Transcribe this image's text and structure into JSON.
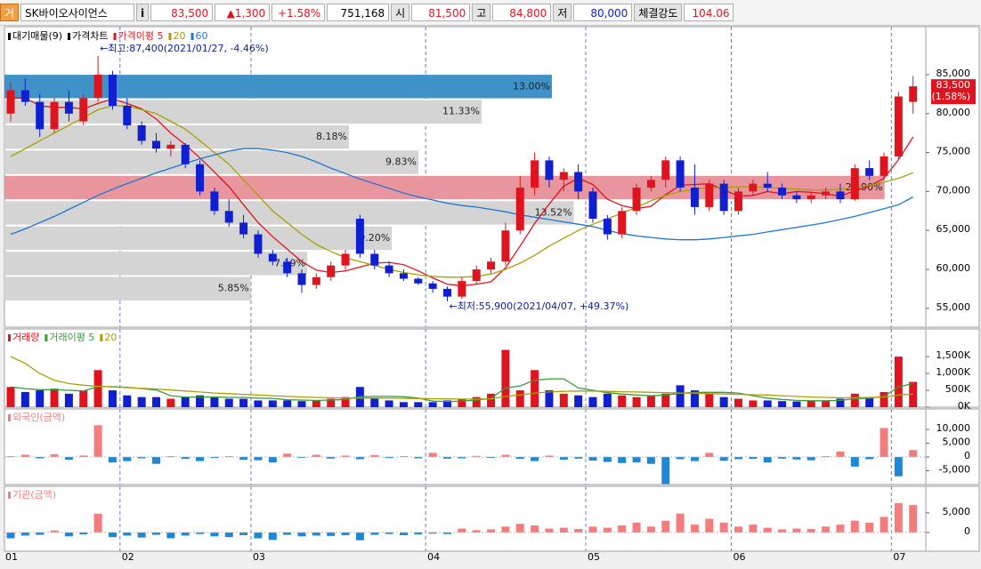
{
  "header": {
    "icon": "거",
    "name": "SK바이오사이언스",
    "info": "i",
    "price": "83,500",
    "change": "▲1,300",
    "rate": "+1.58%",
    "volume": "751,168",
    "open_label": "시",
    "open": "81,500",
    "high_label": "고",
    "high": "84,800",
    "low_label": "저",
    "low": "80,000",
    "strength_label": "체결강도",
    "strength": "104.06"
  },
  "chart_data": [
    {
      "type": "candlestick",
      "categories": [
        "01",
        null,
        null,
        null,
        null,
        null,
        null,
        null,
        "02",
        null,
        null,
        null,
        null,
        null,
        null,
        null,
        null,
        "03",
        null,
        null,
        null,
        null,
        null,
        null,
        null,
        null,
        null,
        null,
        null,
        "04",
        null,
        null,
        null,
        null,
        null,
        null,
        null,
        null,
        null,
        null,
        "05",
        null,
        null,
        null,
        null,
        null,
        null,
        null,
        null,
        null,
        "06",
        null,
        null,
        null,
        null,
        null,
        null,
        null,
        null,
        null,
        null,
        "07",
        null
      ],
      "candles": {
        "name": "가격차트",
        "up_color": "#e0141e",
        "down_color": "#1020d0",
        "open": [
          80000,
          83000,
          81500,
          78000,
          81500,
          79000,
          82000,
          85000,
          81000,
          78500,
          76500,
          75500,
          76000,
          73500,
          70000,
          67500,
          66000,
          64500,
          62000,
          61000,
          59500,
          58000,
          59000,
          60500,
          66500,
          62000,
          60500,
          59500,
          58800,
          58200,
          57500,
          56500,
          58500,
          60000,
          61000,
          65000,
          70500,
          74000,
          71500,
          72500,
          70000,
          66500,
          64500,
          67500,
          70500,
          71500,
          74000,
          70500,
          68000,
          71000,
          67500,
          70000,
          71000,
          70500,
          69500,
          69000,
          69500,
          70000,
          69000,
          73000,
          72000,
          74500,
          81500
        ],
        "high": [
          84000,
          84500,
          82500,
          82000,
          83000,
          82500,
          87400,
          85500,
          82000,
          79000,
          77500,
          76500,
          76200,
          74000,
          70500,
          69000,
          67000,
          65000,
          62500,
          61500,
          60000,
          59500,
          61000,
          62500,
          67000,
          62500,
          61000,
          60000,
          59000,
          58500,
          57800,
          59000,
          60500,
          61500,
          66000,
          72000,
          75000,
          74500,
          73000,
          73500,
          70500,
          67000,
          68000,
          71000,
          72000,
          74500,
          74500,
          73500,
          71500,
          71500,
          70500,
          71500,
          72500,
          71000,
          70000,
          70000,
          70500,
          71000,
          73500,
          74000,
          75000,
          82800,
          84800
        ],
        "low": [
          79000,
          81000,
          77000,
          77500,
          79000,
          78500,
          81500,
          80500,
          78000,
          76000,
          75000,
          74500,
          73000,
          69500,
          67000,
          65500,
          64000,
          61500,
          60500,
          59000,
          57000,
          57500,
          58500,
          60000,
          61500,
          60000,
          59000,
          58500,
          58000,
          57000,
          55900,
          56200,
          58000,
          59500,
          60500,
          64500,
          69500,
          70500,
          70000,
          69000,
          66000,
          63800,
          64000,
          67000,
          70000,
          70500,
          70000,
          67000,
          67500,
          67000,
          67000,
          69500,
          70000,
          69000,
          68500,
          68500,
          69000,
          68500,
          68800,
          71500,
          71500,
          74000,
          80000
        ],
        "close": [
          83000,
          81500,
          78000,
          81500,
          80000,
          82000,
          85000,
          81000,
          78500,
          76500,
          75500,
          76000,
          73500,
          70000,
          67500,
          66000,
          64500,
          62000,
          61000,
          59500,
          58000,
          59000,
          60500,
          62000,
          62000,
          60500,
          59500,
          58800,
          58200,
          57500,
          56500,
          58500,
          60000,
          61000,
          65000,
          70500,
          74000,
          71500,
          72500,
          70000,
          66500,
          64500,
          67500,
          70500,
          71500,
          74000,
          70500,
          68000,
          71000,
          67500,
          70000,
          71000,
          70500,
          69500,
          69000,
          69500,
          70000,
          69000,
          73000,
          72000,
          74500,
          82200,
          83500
        ]
      },
      "lines": [
        {
          "name": "가격이평 5",
          "color": "#e0141e",
          "values": [
            82000,
            82000,
            81000,
            80800,
            80800,
            80600,
            81300,
            81900,
            81300,
            80600,
            79300,
            77500,
            76000,
            74300,
            72500,
            70600,
            68300,
            66000,
            64200,
            62600,
            61000,
            59900,
            59600,
            59800,
            60300,
            60800,
            60900,
            60600,
            59800,
            58900,
            58100,
            57900,
            58100,
            58400,
            60200,
            63000,
            65900,
            68400,
            70700,
            71700,
            70900,
            69000,
            68200,
            67800,
            68100,
            69600,
            70800,
            70900,
            71000,
            70200,
            69400,
            69500,
            70000,
            69700,
            70000,
            69900,
            69700,
            69400,
            70100,
            70700,
            71700,
            74100,
            77000
          ]
        },
        {
          "name": "20",
          "color": "#a8a000",
          "values": [
            74500,
            75500,
            76500,
            77500,
            78500,
            79500,
            80500,
            81000,
            81000,
            80500,
            80000,
            79000,
            78000,
            76500,
            75000,
            73500,
            71500,
            69500,
            67500,
            66000,
            64500,
            63200,
            62300,
            61500,
            61000,
            60500,
            60000,
            59600,
            59300,
            59100,
            59000,
            59000,
            59100,
            59400,
            60000,
            60800,
            61800,
            63000,
            64000,
            65000,
            65800,
            66500,
            67200,
            68000,
            68800,
            69500,
            70000,
            70300,
            70500,
            70500,
            70600,
            70600,
            70500,
            70400,
            70300,
            70200,
            70200,
            70300,
            70500,
            70800,
            71200,
            71700,
            72400
          ]
        },
        {
          "name": "60",
          "color": "#1e78d0",
          "values": [
            64500,
            65200,
            66000,
            66800,
            67700,
            68600,
            69500,
            70300,
            71000,
            71700,
            72400,
            73000,
            73600,
            74200,
            74700,
            75200,
            75500,
            75500,
            75300,
            75000,
            74500,
            73800,
            73000,
            72300,
            71600,
            71000,
            70400,
            69800,
            69300,
            68900,
            68500,
            68200,
            68000,
            67700,
            67400,
            67000,
            66700,
            66400,
            66100,
            65800,
            65500,
            65000,
            64600,
            64300,
            64100,
            63900,
            63800,
            63800,
            63900,
            64100,
            64300,
            64500,
            64800,
            65100,
            65400,
            65700,
            66000,
            66400,
            66800,
            67300,
            67800,
            68300,
            69300
          ]
        }
      ],
      "profile": {
        "name": "대기매물(9)",
        "range": [
          55900,
          85100
        ],
        "xlim": [
          0,
          21.88
        ],
        "values": [
          5.85,
          7.19,
          9.2,
          13.52,
          20.9,
          9.83,
          8.18,
          11.33,
          13.0
        ],
        "value_labels": [
          "5.85%",
          "7.19%",
          "9.20%",
          "13.52%",
          "20.90%",
          "9.83%",
          "8.18%",
          "11.33%",
          "13.00%"
        ],
        "colors": [
          "#d4d4d4",
          "#d4d4d4",
          "#d4d4d4",
          "#d4d4d4",
          "#e8959d",
          "#d4d4d4",
          "#d4d4d4",
          "#d4d4d4",
          "#3f92c8"
        ]
      },
      "annotations": [
        {
          "text": "←최고:87,400(2021/01/27, -4.46%)",
          "index": 6,
          "value": 87400
        },
        {
          "text": "←최저:55,900(2021/04/07, +49.37%)",
          "index": 30,
          "value": 55900
        }
      ],
      "last_price": {
        "value": 83500,
        "label": "83,500",
        "change_label": "(1.58%)",
        "color": "#e0141e"
      },
      "ylim": [
        52580,
        91160
      ],
      "yticks": [
        {
          "value": 55000,
          "label": "55,000"
        },
        {
          "value": 60000,
          "label": "60,000"
        },
        {
          "value": 65000,
          "label": "65,000"
        },
        {
          "value": 70000,
          "label": "70,000"
        },
        {
          "value": 75000,
          "label": "75,000"
        },
        {
          "value": 80000,
          "label": "80,000"
        },
        {
          "value": 85000,
          "label": "85,000"
        }
      ]
    },
    {
      "type": "bar",
      "name": "거래량",
      "color_by": "candles",
      "values": [
        600,
        450,
        500,
        550,
        400,
        500,
        1100,
        500,
        350,
        300,
        300,
        250,
        300,
        350,
        300,
        250,
        250,
        200,
        200,
        200,
        180,
        200,
        250,
        300,
        600,
        250,
        200,
        150,
        150,
        150,
        200,
        250,
        300,
        400,
        1700,
        500,
        1100,
        500,
        400,
        350,
        300,
        400,
        350,
        300,
        350,
        400,
        650,
        500,
        400,
        300,
        250,
        200,
        200,
        180,
        170,
        200,
        200,
        250,
        400,
        300,
        450,
        1500,
        750
      ],
      "lines": [
        {
          "name": "거래이평 5",
          "color": "#3a9a3a",
          "values": [
            600,
            550,
            520,
            520,
            500,
            480,
            610,
            610,
            590,
            550,
            510,
            340,
            300,
            300,
            300,
            290,
            290,
            270,
            260,
            220,
            210,
            200,
            210,
            230,
            310,
            320,
            320,
            310,
            270,
            180,
            170,
            180,
            210,
            260,
            570,
            630,
            800,
            840,
            840,
            570,
            500,
            430,
            390,
            360,
            340,
            360,
            410,
            440,
            440,
            440,
            420,
            340,
            270,
            230,
            200,
            190,
            190,
            200,
            250,
            270,
            320,
            600,
            700
          ]
        },
        {
          "name": "20",
          "color": "#a8a000",
          "values": [
            1500,
            1300,
            1000,
            800,
            700,
            650,
            620,
            600,
            580,
            560,
            540,
            510,
            480,
            450,
            420,
            400,
            380,
            360,
            340,
            320,
            300,
            290,
            280,
            270,
            270,
            270,
            265,
            260,
            255,
            250,
            245,
            240,
            240,
            245,
            320,
            360,
            420,
            450,
            470,
            480,
            480,
            470,
            460,
            450,
            440,
            430,
            420,
            410,
            400,
            390,
            380,
            370,
            360,
            340,
            320,
            300,
            290,
            280,
            280,
            290,
            300,
            360,
            390
          ]
        }
      ],
      "ylim": [
        0,
        2320
      ],
      "yticks": [
        {
          "value": 0,
          "label": "0K"
        },
        {
          "value": 500,
          "label": "500K"
        },
        {
          "value": 1000,
          "label": "1,000K"
        },
        {
          "value": 1500,
          "label": "1,500K"
        }
      ]
    },
    {
      "type": "bar",
      "name": "외국인(금액)",
      "pos_color": "#f47c7c",
      "neg_color": "#1e88d6",
      "values": [
        300,
        800,
        -500,
        1000,
        -1000,
        500,
        11500,
        -2000,
        -1500,
        -500,
        -2500,
        300,
        -700,
        -1500,
        -400,
        300,
        -1000,
        -1200,
        -2000,
        1200,
        -300,
        800,
        -600,
        500,
        -800,
        700,
        -400,
        300,
        -500,
        1500,
        -600,
        -500,
        400,
        -300,
        800,
        -700,
        -1500,
        500,
        -1000,
        -600,
        -1300,
        -1800,
        -2200,
        -2000,
        -2500,
        -9800,
        -800,
        -1500,
        1500,
        -1400,
        -800,
        -700,
        -2000,
        -600,
        -900,
        -1200,
        300,
        2000,
        -3500,
        -800,
        10500,
        -7000,
        2500
      ],
      "ylim": [
        -10000,
        17400
      ],
      "yticks": [
        {
          "value": -5000,
          "label": "-5,000"
        },
        0,
        {
          "value": 5000,
          "label": "5,000"
        },
        {
          "value": 10000,
          "label": "10,000"
        }
      ]
    },
    {
      "type": "bar",
      "name": "기관(금액)",
      "pos_color": "#f47c7c",
      "neg_color": "#1e88d6",
      "values": [
        -1500,
        -800,
        -600,
        500,
        -1000,
        -500,
        4800,
        -1200,
        -800,
        -1300,
        -600,
        -1500,
        -800,
        -400,
        -1000,
        -1200,
        -700,
        -1500,
        -1900,
        -600,
        -1000,
        -800,
        -900,
        -700,
        -2000,
        -600,
        -400,
        -700,
        -500,
        -300,
        -400,
        1000,
        600,
        800,
        1500,
        2200,
        1800,
        1000,
        1200,
        900,
        1500,
        1200,
        1800,
        2500,
        1500,
        3000,
        4800,
        2000,
        3500,
        2500,
        1500,
        2000,
        1200,
        800,
        1000,
        900,
        1500,
        2000,
        3000,
        2500,
        4000,
        7500,
        7000
      ],
      "ylim": [
        -4800,
        11800
      ],
      "yticks": [
        0,
        {
          "value": 5000,
          "label": "5,000"
        }
      ]
    }
  ]
}
